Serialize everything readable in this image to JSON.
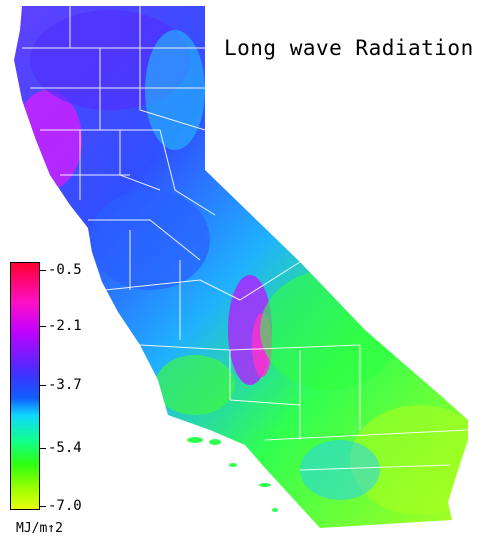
{
  "title": "Long wave Radiation",
  "legend": {
    "ticks": [
      "-0.5",
      "-2.1",
      "-3.7",
      "-5.4",
      "-7.0"
    ],
    "unit": "MJ/m↑2"
  },
  "colors": {
    "high": "#ff0030",
    "mid_high": "#ff10c8",
    "mid": "#4030ff",
    "mid_low": "#10d8ff",
    "low": "#30ff10",
    "lowest": "#e8ff10"
  }
}
